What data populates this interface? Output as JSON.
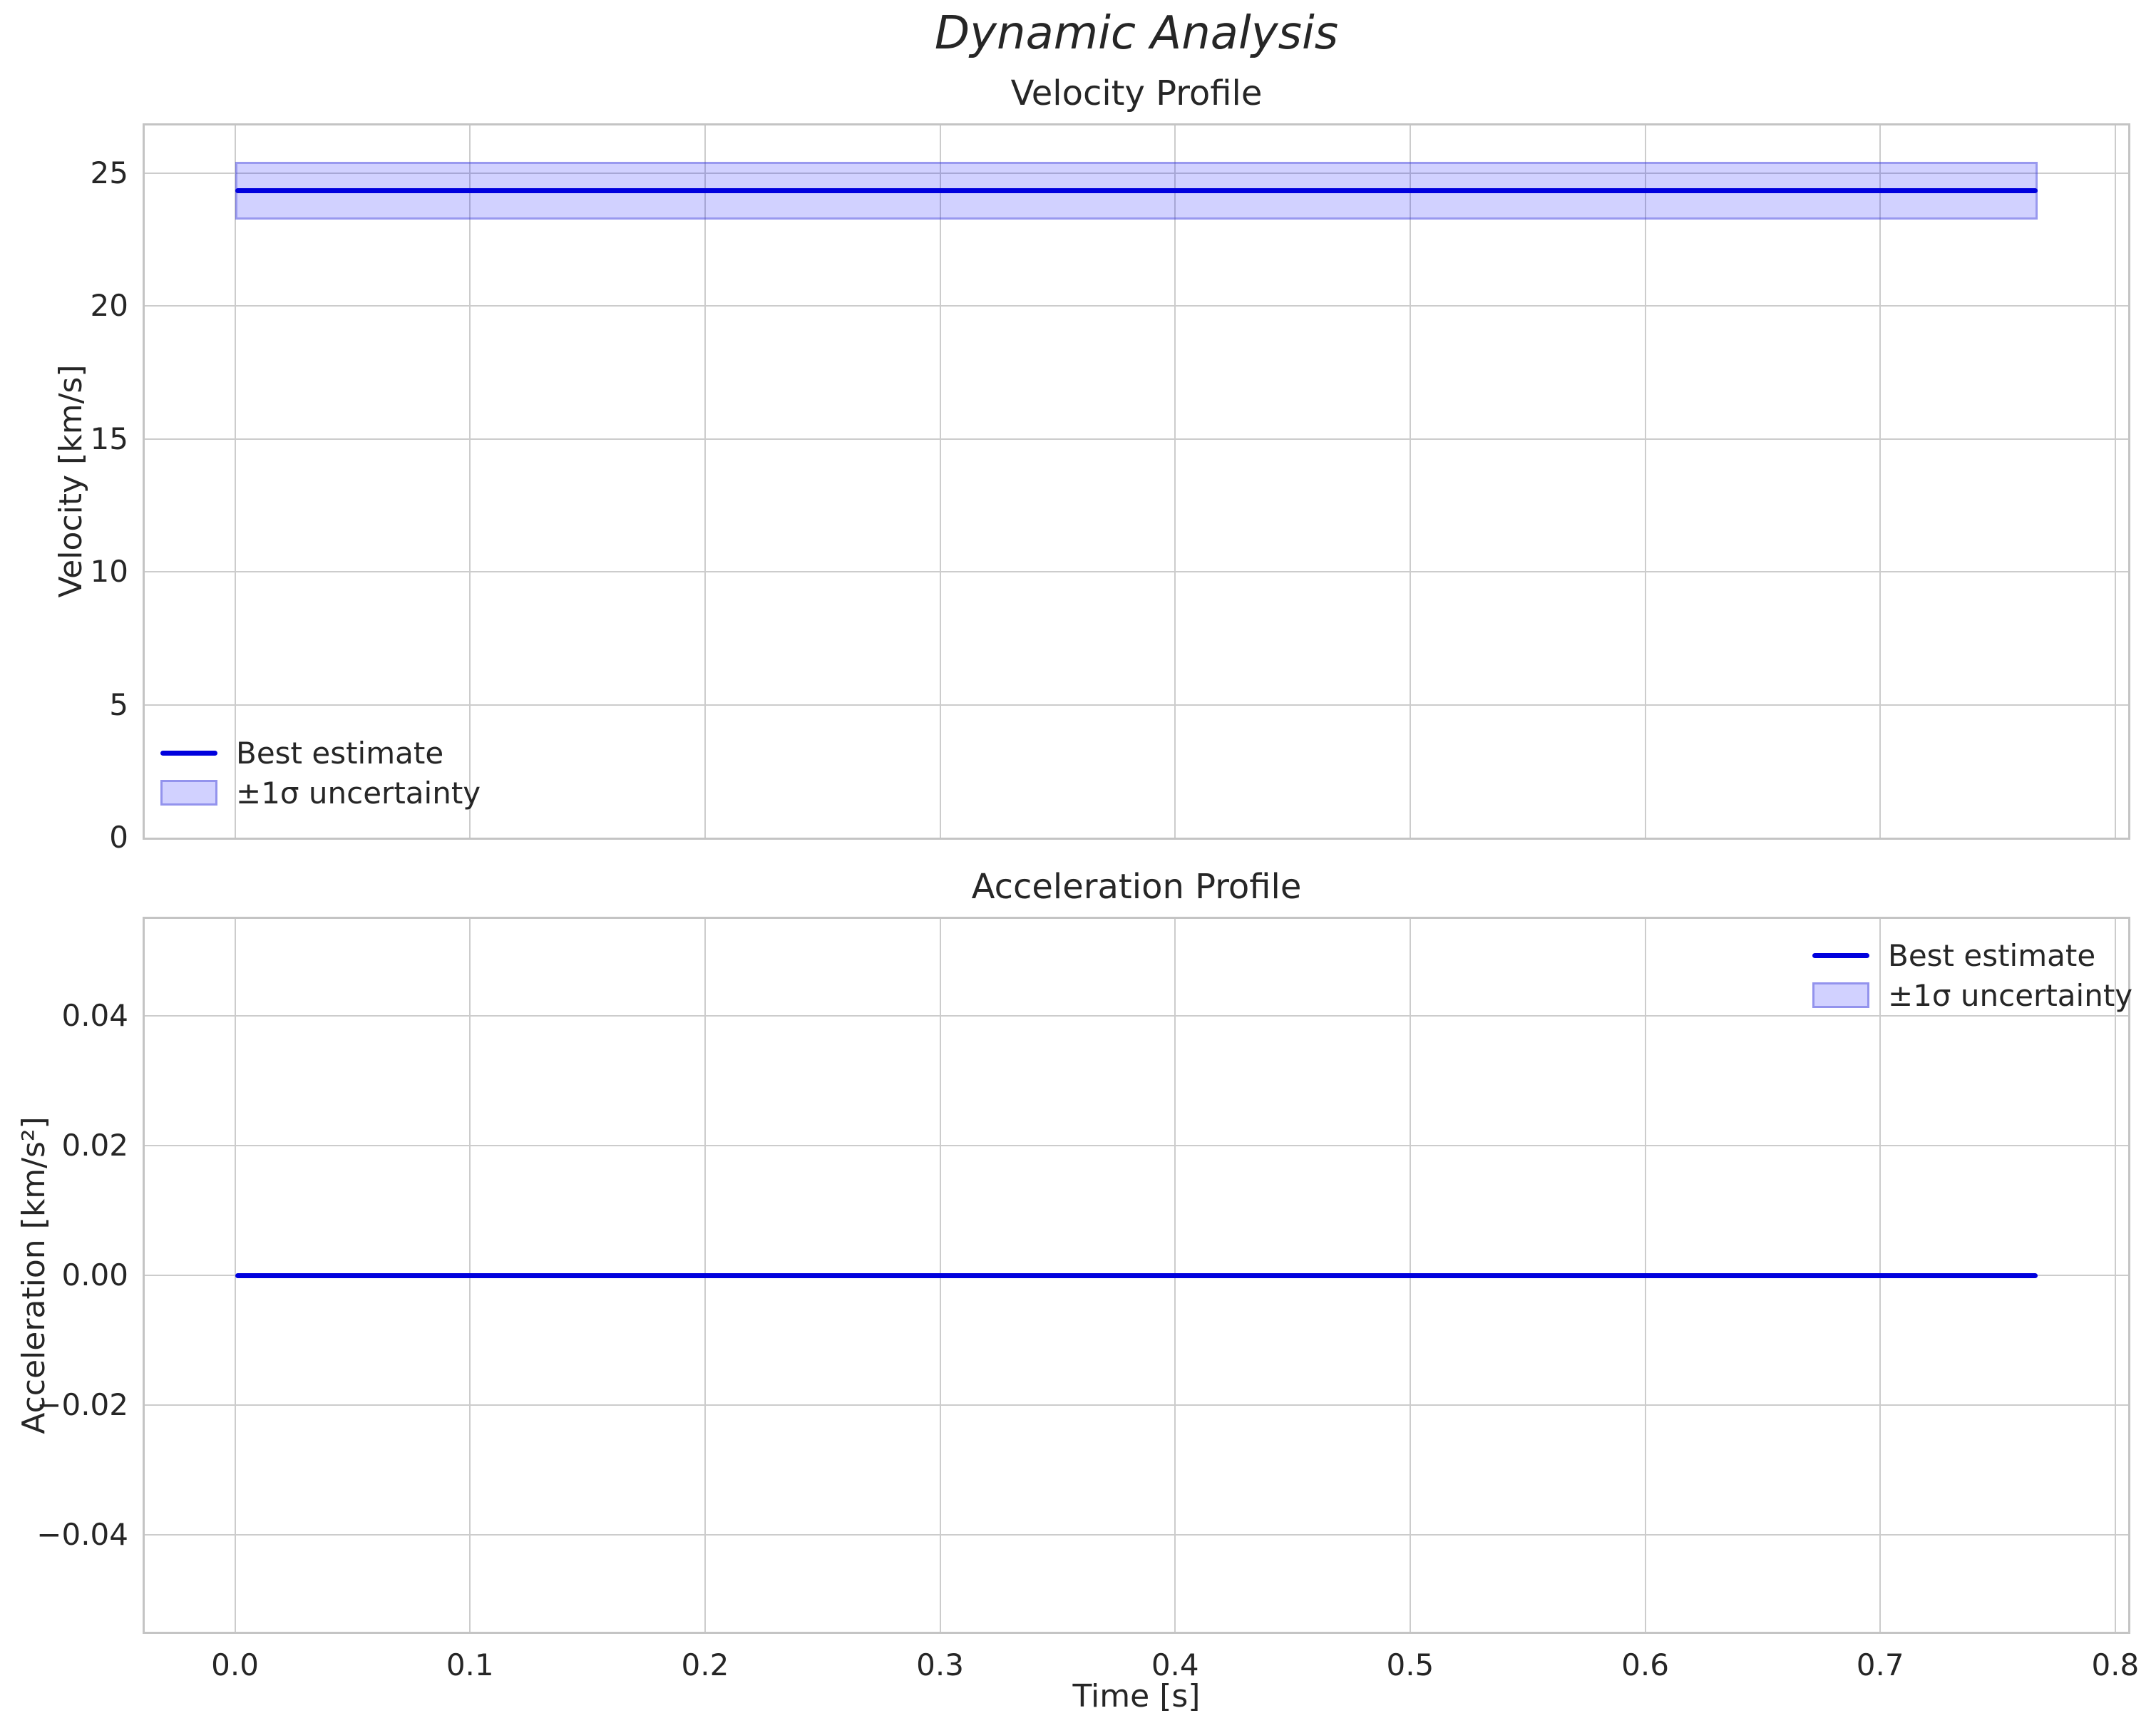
{
  "figure": {
    "suptitle": "Dynamic Analysis",
    "xlabel": "Time [s]"
  },
  "legend": {
    "line_label": "Best estimate",
    "band_label": "±1σ uncertainty"
  },
  "colors": {
    "line": "#0000dd",
    "band_fill": "rgba(0,0,255,0.18)",
    "band_edge": "rgba(70,70,215,0.40)",
    "grid": "#cccccc",
    "spine": "#c4c4c4",
    "text": "#262626"
  },
  "chart_data": [
    {
      "type": "line",
      "title": "Velocity Profile",
      "xlabel": "",
      "ylabel": "Velocity [km/s]",
      "x_range": [
        0.0,
        0.767
      ],
      "series": [
        {
          "name": "Best estimate",
          "style": "constant-line",
          "y_value": 24.35
        }
      ],
      "uncertainty_band": {
        "name": "±1σ uncertainty",
        "low": 23.27,
        "high": 25.43,
        "sigma": 1.08
      },
      "xlim": [
        -0.0384,
        0.8055
      ],
      "ylim": [
        0,
        26.8
      ],
      "yticks": {
        "values": [
          0,
          5,
          10,
          15,
          20,
          25
        ],
        "labels": [
          "0",
          "5",
          "10",
          "15",
          "20",
          "25"
        ]
      },
      "xticks": {
        "values": [
          0.0,
          0.1,
          0.2,
          0.3,
          0.4,
          0.5,
          0.6,
          0.7,
          0.8
        ],
        "labels": [
          "0.0",
          "0.1",
          "0.2",
          "0.3",
          "0.4",
          "0.5",
          "0.6",
          "0.7",
          "0.8"
        ],
        "show_labels": false
      },
      "grid": true,
      "legend_position": "lower left",
      "legend_entries": [
        "Best estimate",
        "±1σ uncertainty"
      ]
    },
    {
      "type": "line",
      "title": "Acceleration Profile",
      "xlabel": "Time [s]",
      "ylabel": "Acceleration [km/s²]",
      "x_range": [
        0.0,
        0.767
      ],
      "series": [
        {
          "name": "Best estimate",
          "style": "constant-line",
          "y_value": 0.0
        }
      ],
      "uncertainty_band": {
        "name": "±1σ uncertainty",
        "low": 0.0,
        "high": 0.0,
        "sigma": 0.0
      },
      "xlim": [
        -0.0384,
        0.8055
      ],
      "ylim": [
        -0.0549,
        0.0549
      ],
      "yticks": {
        "values": [
          -0.04,
          -0.02,
          0.0,
          0.02,
          0.04
        ],
        "labels": [
          "−0.04",
          "−0.02",
          "0.00",
          "0.02",
          "0.04"
        ]
      },
      "xticks": {
        "values": [
          0.0,
          0.1,
          0.2,
          0.3,
          0.4,
          0.5,
          0.6,
          0.7,
          0.8
        ],
        "labels": [
          "0.0",
          "0.1",
          "0.2",
          "0.3",
          "0.4",
          "0.5",
          "0.6",
          "0.7",
          "0.8"
        ],
        "show_labels": true
      },
      "grid": true,
      "legend_position": "upper right",
      "legend_entries": [
        "Best estimate",
        "±1σ uncertainty"
      ]
    }
  ]
}
